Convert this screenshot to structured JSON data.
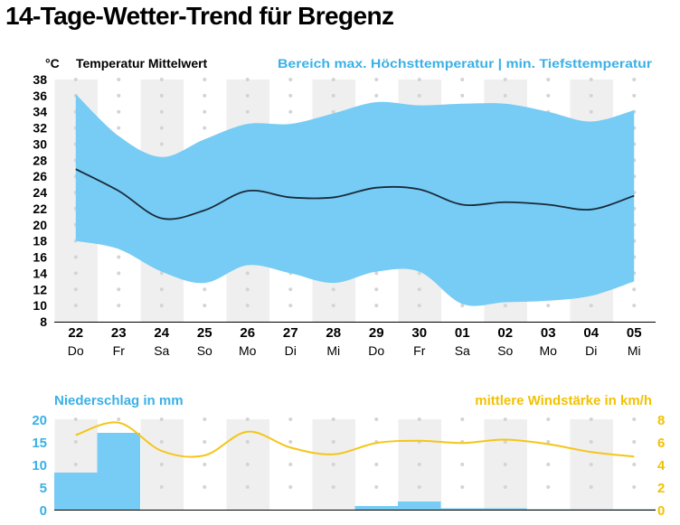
{
  "title": "14-Tage-Wetter-Trend für Bregenz",
  "colors": {
    "range_band": "#76ccf4",
    "mean_line": "#1b2a3a",
    "precip_bar": "#76ccf4",
    "precip_label": "#3ab0e6",
    "wind_line": "#f5c518",
    "wind_label": "#f2c200",
    "column_shade": "#efefef",
    "dot": "#d4d4d4",
    "text": "#000000"
  },
  "chart_data": [
    {
      "type": "area",
      "unit_label": "°C",
      "legend_mean": "Temperatur Mittelwert",
      "legend_range": "Bereich max. Höchsttemperatur | min. Tiefsttemperatur",
      "ylim": [
        8,
        38
      ],
      "yticks": [
        8,
        10,
        12,
        14,
        16,
        18,
        20,
        22,
        24,
        26,
        28,
        30,
        32,
        34,
        36,
        38
      ],
      "categories": [
        "22",
        "23",
        "24",
        "25",
        "26",
        "27",
        "28",
        "29",
        "30",
        "01",
        "02",
        "03",
        "04",
        "05"
      ],
      "weekdays": [
        "Do",
        "Fr",
        "Sa",
        "So",
        "Mo",
        "Di",
        "Mi",
        "Do",
        "Fr",
        "Sa",
        "So",
        "Mo",
        "Di",
        "Mi"
      ],
      "series": [
        {
          "name": "Höchsttemperatur",
          "values": [
            36.2,
            31.0,
            28.4,
            30.6,
            32.5,
            32.5,
            33.8,
            35.2,
            34.8,
            35.0,
            35.0,
            34.0,
            32.8,
            34.2
          ]
        },
        {
          "name": "Tiefsttemperatur",
          "values": [
            18.0,
            17.0,
            14.2,
            12.8,
            15.0,
            14.0,
            12.8,
            14.2,
            14.2,
            10.2,
            10.4,
            10.6,
            11.2,
            13.0
          ]
        },
        {
          "name": "Temperatur Mittelwert",
          "values": [
            26.9,
            24.2,
            20.8,
            21.8,
            24.2,
            23.4,
            23.4,
            24.6,
            24.4,
            22.5,
            22.8,
            22.5,
            21.9,
            23.6
          ]
        }
      ],
      "grid": "dotted",
      "shaded_weekend_columns": true
    },
    {
      "type": "bar",
      "left_label": "Niederschlag in mm",
      "right_label": "mittlere Windstärke in km/h",
      "categories": [
        "22",
        "23",
        "24",
        "25",
        "26",
        "27",
        "28",
        "29",
        "30",
        "01",
        "02",
        "03",
        "04",
        "05"
      ],
      "ylim_left": [
        0,
        20
      ],
      "yticks_left": [
        0,
        5,
        10,
        15,
        20
      ],
      "ylim_right": [
        0,
        8
      ],
      "yticks_right": [
        0,
        2,
        4,
        6,
        8
      ],
      "series": [
        {
          "name": "Niederschlag in mm",
          "axis": "left",
          "kind": "bar",
          "values": [
            8.2,
            17.0,
            0,
            0,
            0,
            0,
            0,
            0.8,
            1.8,
            0.3,
            0.3,
            0.1,
            0.1,
            0.1
          ]
        },
        {
          "name": "mittlere Windstärke in km/h",
          "axis": "right",
          "kind": "line",
          "values": [
            6.6,
            7.7,
            5.2,
            4.8,
            6.9,
            5.5,
            4.9,
            5.9,
            6.1,
            5.9,
            6.2,
            5.8,
            5.1,
            4.7
          ]
        }
      ]
    }
  ]
}
